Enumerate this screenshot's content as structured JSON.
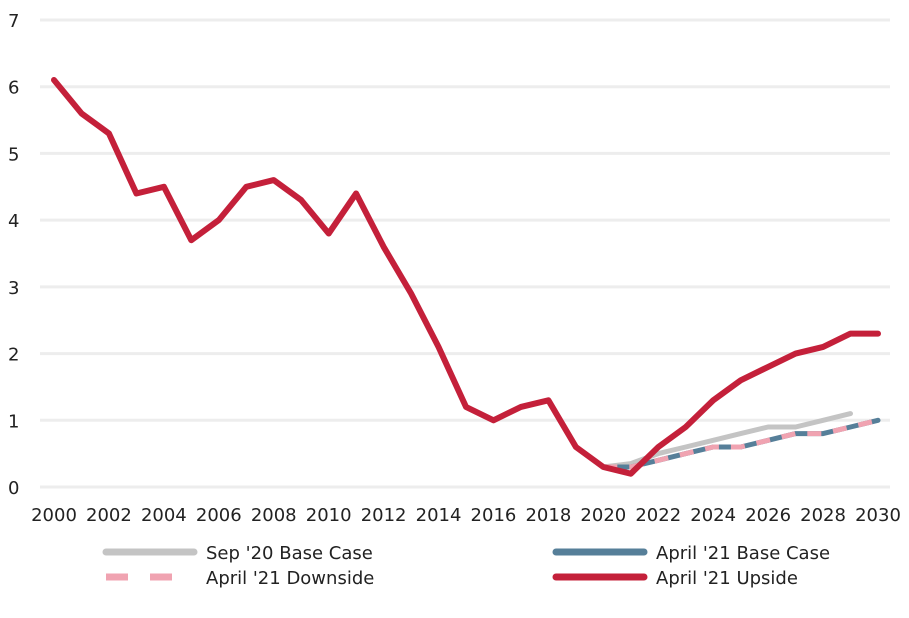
{
  "chart_data": {
    "type": "line",
    "title": "",
    "xlabel": "",
    "ylabel": "",
    "xlim": [
      2000,
      2030
    ],
    "ylim": [
      0,
      7
    ],
    "yticks": [
      "0",
      "1",
      "2",
      "3",
      "4",
      "5",
      "6",
      "7"
    ],
    "xticks": [
      "2000",
      "2002",
      "2004",
      "2006",
      "2008",
      "2010",
      "2012",
      "2014",
      "2016",
      "2018",
      "2020",
      "2022",
      "2024",
      "2026",
      "2028",
      "2030"
    ],
    "grid": "horizontal",
    "legend_position": "bottom",
    "series": [
      {
        "name": "Sep '20 Base Case",
        "color": "#c4c4c4",
        "style": "solid",
        "x": [
          2020,
          2021,
          2022,
          2023,
          2024,
          2025,
          2026,
          2027,
          2028,
          2029
        ],
        "y": [
          0.3,
          0.35,
          0.5,
          0.6,
          0.7,
          0.8,
          0.9,
          0.9,
          1.0,
          1.1
        ]
      },
      {
        "name": "April '21 Base Case",
        "color": "#567f99",
        "style": "solid",
        "x": [
          2020,
          2021,
          2022,
          2023,
          2024,
          2025,
          2026,
          2027,
          2028,
          2029,
          2030
        ],
        "y": [
          0.3,
          0.3,
          0.4,
          0.5,
          0.6,
          0.6,
          0.7,
          0.8,
          0.8,
          0.9,
          1.0
        ]
      },
      {
        "name": "April '21 Downside",
        "color": "#f0a3b1",
        "style": "dashed",
        "x": [
          2020,
          2021,
          2022,
          2023,
          2024,
          2025,
          2026,
          2027,
          2028,
          2029,
          2030
        ],
        "y": [
          0.3,
          0.3,
          0.4,
          0.5,
          0.6,
          0.6,
          0.7,
          0.8,
          0.8,
          0.9,
          1.0
        ]
      },
      {
        "name": "April '21 Upside",
        "color": "#c4203a",
        "style": "solid",
        "x": [
          2000,
          2001,
          2002,
          2003,
          2004,
          2005,
          2006,
          2007,
          2008,
          2009,
          2010,
          2011,
          2012,
          2013,
          2014,
          2015,
          2016,
          2017,
          2018,
          2019,
          2020,
          2021,
          2022,
          2023,
          2024,
          2025,
          2026,
          2027,
          2028,
          2029,
          2030
        ],
        "y": [
          6.1,
          5.6,
          5.3,
          4.4,
          4.5,
          3.7,
          4.0,
          4.5,
          4.6,
          4.3,
          3.8,
          4.4,
          3.6,
          2.9,
          2.1,
          1.2,
          1.0,
          1.2,
          1.3,
          0.6,
          0.3,
          0.2,
          0.6,
          0.9,
          1.3,
          1.6,
          1.8,
          2.0,
          2.1,
          2.3,
          2.3
        ]
      }
    ],
    "legend_order": [
      0,
      1,
      2,
      3
    ]
  }
}
